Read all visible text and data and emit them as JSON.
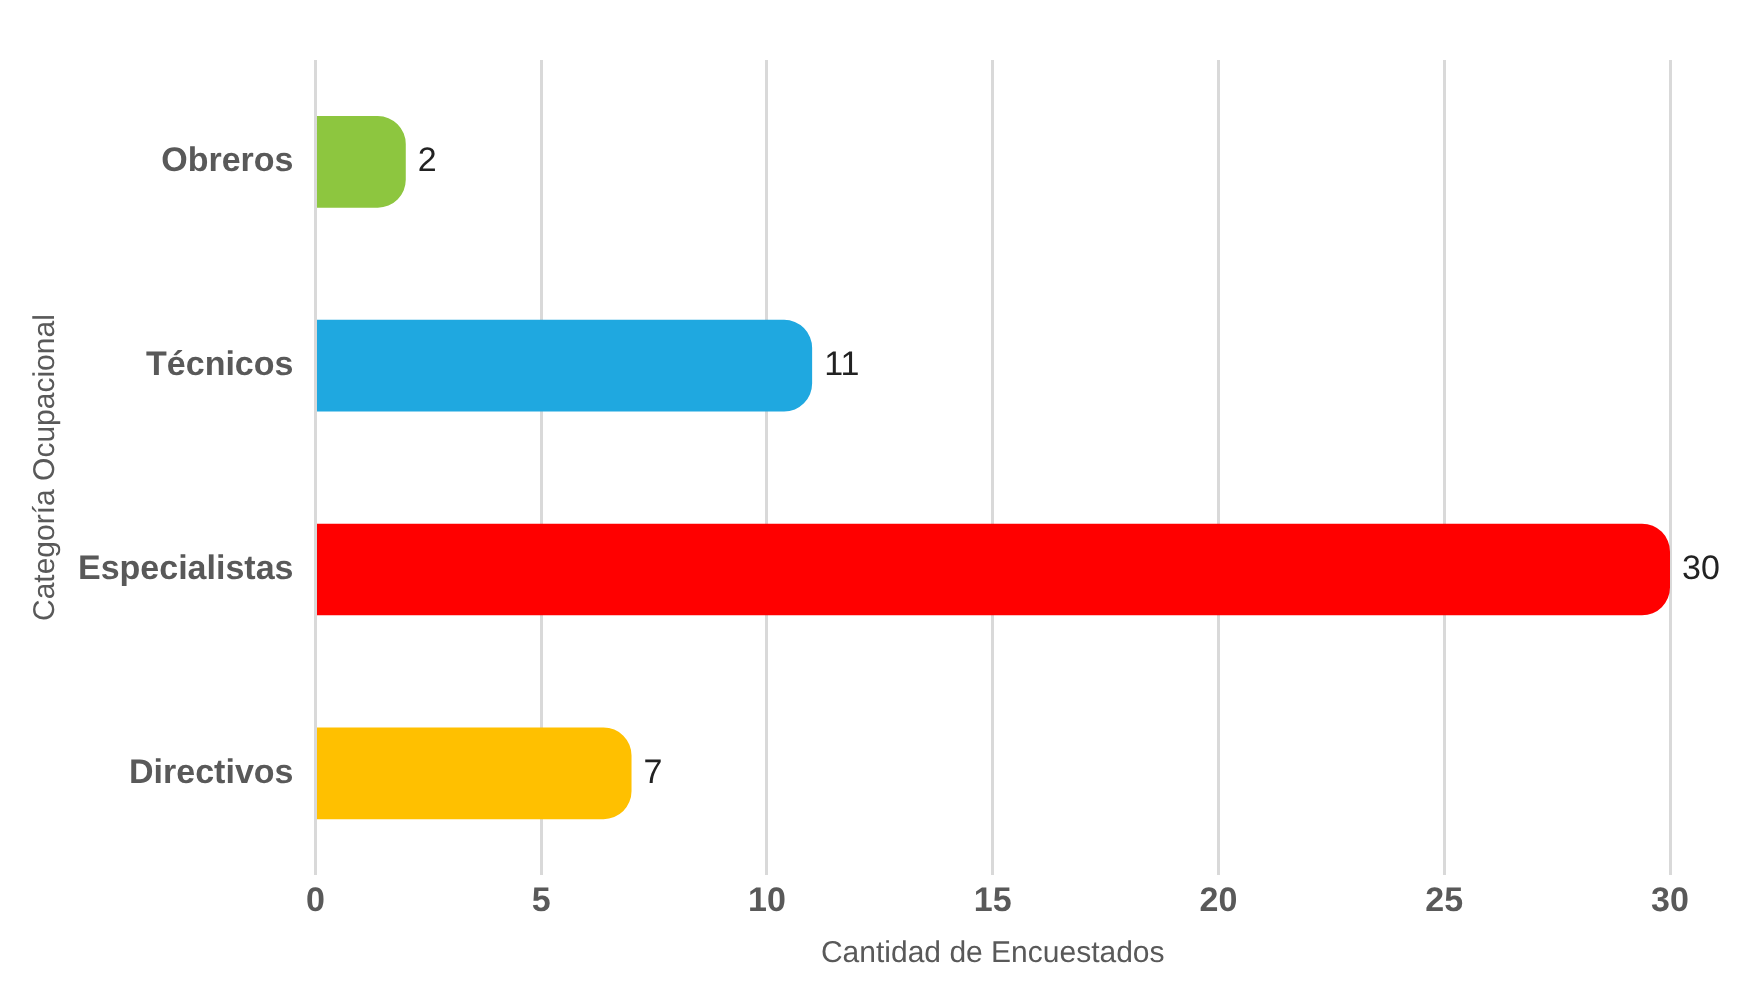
{
  "chart_data": {
    "type": "bar",
    "orientation": "horizontal",
    "xlabel": "Cantidad de Encuestados",
    "ylabel": "Categoría Ocupacional",
    "categories": [
      "Obreros",
      "Técnicos",
      "Especialistas",
      "Directivos"
    ],
    "values": [
      2,
      11,
      30,
      7
    ],
    "colors": [
      "#8dc63f",
      "#1fa8e0",
      "#ff0000",
      "#ffc000"
    ],
    "xlim": [
      0,
      30
    ],
    "xticks": [
      0,
      5,
      10,
      15,
      20,
      25,
      30
    ],
    "grid": "x",
    "data_labels": true,
    "legend": false
  }
}
